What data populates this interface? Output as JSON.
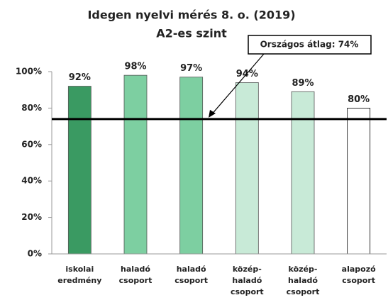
{
  "chart_data": {
    "type": "bar",
    "title": [
      "Idegen nyelvi mérés 8. o. (2019)",
      "A2-es szint"
    ],
    "categories": [
      [
        "iskolai",
        "eredmény"
      ],
      [
        "haladó",
        "csoport"
      ],
      [
        "haladó",
        "csoport"
      ],
      [
        "közép-",
        "haladó",
        "csoport"
      ],
      [
        "közép-",
        "haladó",
        "csoport"
      ],
      [
        "alapozó",
        "csoport"
      ]
    ],
    "values": [
      92,
      98,
      97,
      94,
      89,
      80
    ],
    "value_labels": [
      "92%",
      "98%",
      "97%",
      "94%",
      "89%",
      "80%"
    ],
    "colors": [
      "#3a9a62",
      "#7dcfa1",
      "#7dcfa1",
      "#c8ead7",
      "#c8ead7",
      "#ffffff"
    ],
    "ylim": [
      0,
      100
    ],
    "yticks": [
      {
        "value": 0,
        "label": "0%"
      },
      {
        "value": 20,
        "label": "20%"
      },
      {
        "value": 40,
        "label": "40%"
      },
      {
        "value": 60,
        "label": "60%"
      },
      {
        "value": 80,
        "label": "80%"
      },
      {
        "value": 100,
        "label": "100%"
      }
    ],
    "grid": false,
    "reference_line": {
      "value": 74,
      "label": "Országos átlag: 74%"
    }
  }
}
